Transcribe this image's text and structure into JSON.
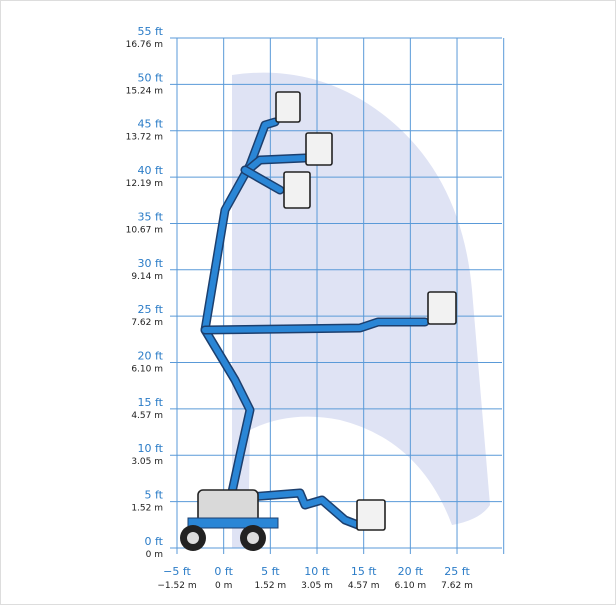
{
  "y_axis": [
    {
      "ft": "55 ft",
      "m": "16.76 m"
    },
    {
      "ft": "50 ft",
      "m": "15.24 m"
    },
    {
      "ft": "45 ft",
      "m": "13.72 m"
    },
    {
      "ft": "40 ft",
      "m": "12.19 m"
    },
    {
      "ft": "35 ft",
      "m": "10.67 m"
    },
    {
      "ft": "30 ft",
      "m": "9.14 m"
    },
    {
      "ft": "25 ft",
      "m": "7.62 m"
    },
    {
      "ft": "20 ft",
      "m": "6.10 m"
    },
    {
      "ft": "15 ft",
      "m": "4.57 m"
    },
    {
      "ft": "10 ft",
      "m": "3.05 m"
    },
    {
      "ft": "5 ft",
      "m": "1.52 m"
    },
    {
      "ft": "0 ft",
      "m": "0 m"
    }
  ],
  "x_axis": [
    {
      "ft": "−5 ft",
      "m": "−1.52 m"
    },
    {
      "ft": "0 ft",
      "m": "0 m"
    },
    {
      "ft": "5 ft",
      "m": "1.52 m"
    },
    {
      "ft": "10 ft",
      "m": "3.05 m"
    },
    {
      "ft": "15 ft",
      "m": "4.57 m"
    },
    {
      "ft": "20 ft",
      "m": "6.10 m"
    },
    {
      "ft": "25 ft",
      "m": "7.62 m"
    }
  ]
}
